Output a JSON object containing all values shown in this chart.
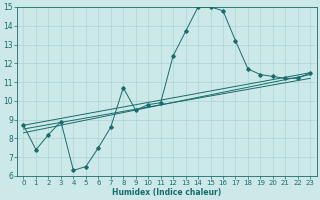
{
  "xlabel": "Humidex (Indice chaleur)",
  "bg_color": "#cce8e8",
  "grid_color": "#b0d8d8",
  "line_color": "#1a6b6b",
  "xlim": [
    -0.5,
    23.5
  ],
  "ylim": [
    6,
    15
  ],
  "xticks": [
    0,
    1,
    2,
    3,
    4,
    5,
    6,
    7,
    8,
    9,
    10,
    11,
    12,
    13,
    14,
    15,
    16,
    17,
    18,
    19,
    20,
    21,
    22,
    23
  ],
  "yticks": [
    6,
    7,
    8,
    9,
    10,
    11,
    12,
    13,
    14,
    15
  ],
  "series1_x": [
    0,
    1,
    2,
    3,
    4,
    5,
    6,
    7,
    8,
    9,
    10,
    11,
    12,
    13,
    14,
    15,
    16,
    17,
    18,
    19,
    20,
    21,
    22,
    23
  ],
  "series1_y": [
    8.7,
    7.4,
    8.2,
    8.9,
    6.3,
    6.5,
    7.5,
    8.6,
    10.7,
    9.5,
    9.8,
    9.9,
    12.4,
    13.7,
    15.0,
    15.0,
    14.8,
    13.2,
    11.7,
    11.4,
    11.3,
    11.2,
    11.2,
    11.5
  ],
  "series2_x": [
    0,
    23
  ],
  "series2_y": [
    8.7,
    11.5
  ],
  "series3_x": [
    0,
    23
  ],
  "series3_y": [
    8.5,
    11.2
  ],
  "series4_x": [
    0,
    23
  ],
  "series4_y": [
    8.3,
    11.4
  ]
}
